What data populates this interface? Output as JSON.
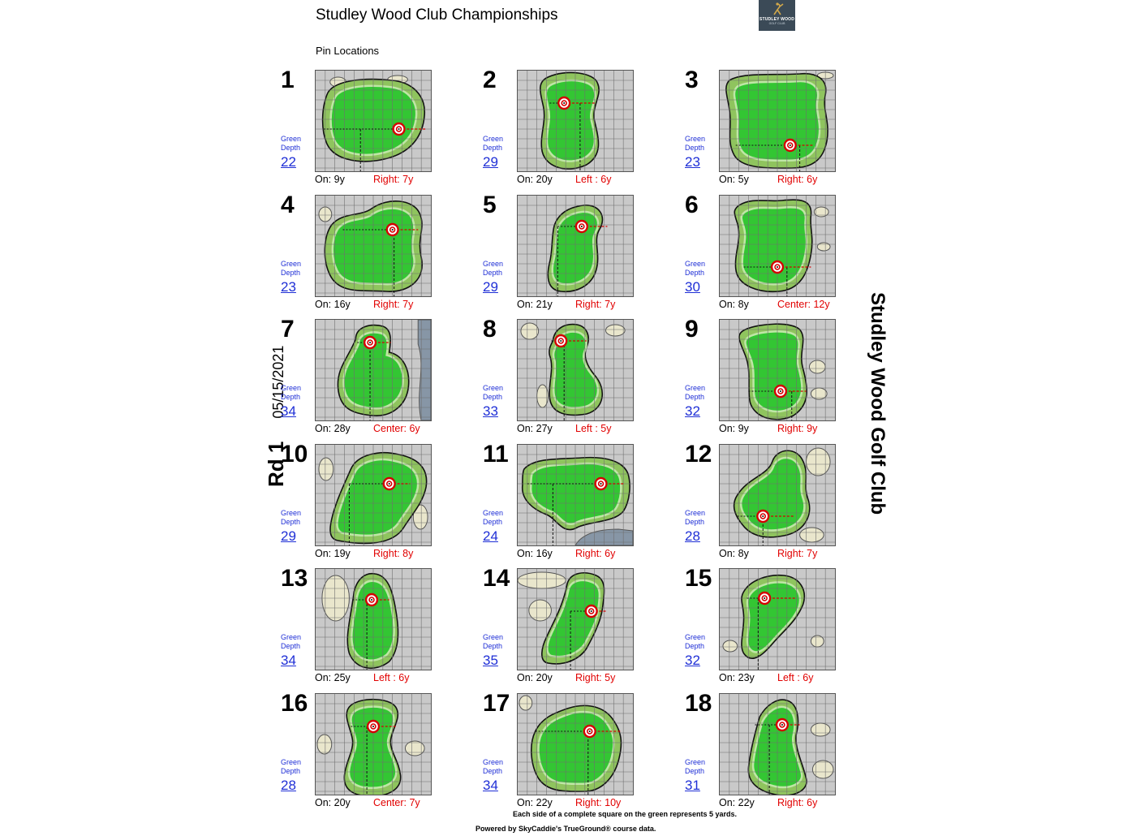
{
  "header": {
    "title": "Studley Wood Club Championships",
    "subtitle": "Pin Locations",
    "logo_line1": "STUDLEY WOOD",
    "logo_line2": "GOLF CLUB"
  },
  "round": {
    "label": "Rd 1",
    "date": "05/15/2021"
  },
  "club_name": "Studley Wood Golf Club",
  "green_depth_label": [
    "Green",
    "Depth"
  ],
  "holes": [
    {
      "number": "1",
      "depth": "22",
      "on": "On: 9y",
      "side": "Right: 7y"
    },
    {
      "number": "2",
      "depth": "29",
      "on": "On: 20y",
      "side": "Left : 6y"
    },
    {
      "number": "3",
      "depth": "23",
      "on": "On: 5y",
      "side": "Right: 6y"
    },
    {
      "number": "4",
      "depth": "23",
      "on": "On: 16y",
      "side": "Right: 7y"
    },
    {
      "number": "5",
      "depth": "29",
      "on": "On: 21y",
      "side": "Right: 7y"
    },
    {
      "number": "6",
      "depth": "30",
      "on": "On: 8y",
      "side": "Center: 12y"
    },
    {
      "number": "7",
      "depth": "34",
      "on": "On: 28y",
      "side": "Center: 6y"
    },
    {
      "number": "8",
      "depth": "33",
      "on": "On: 27y",
      "side": "Left : 5y"
    },
    {
      "number": "9",
      "depth": "32",
      "on": "On: 9y",
      "side": "Right: 9y"
    },
    {
      "number": "10",
      "depth": "29",
      "on": "On: 19y",
      "side": "Right: 8y"
    },
    {
      "number": "11",
      "depth": "24",
      "on": "On: 16y",
      "side": "Right: 6y"
    },
    {
      "number": "12",
      "depth": "28",
      "on": "On: 8y",
      "side": "Right: 7y"
    },
    {
      "number": "13",
      "depth": "34",
      "on": "On: 25y",
      "side": "Left : 6y"
    },
    {
      "number": "14",
      "depth": "35",
      "on": "On: 20y",
      "side": "Right: 5y"
    },
    {
      "number": "15",
      "depth": "32",
      "on": "On: 23y",
      "side": "Left : 6y"
    },
    {
      "number": "16",
      "depth": "28",
      "on": "On: 20y",
      "side": "Center: 7y"
    },
    {
      "number": "17",
      "depth": "34",
      "on": "On: 22y",
      "side": "Right: 10y"
    },
    {
      "number": "18",
      "depth": "31",
      "on": "On: 22y",
      "side": "Right: 6y"
    }
  ],
  "footer": {
    "scale_note": "Each side of a complete square on the green represents 5 yards.",
    "powered_by": "Powered by SkyCaddie's TrueGround® course data."
  },
  "colors": {
    "green": "#33c633",
    "fringe": "#8fc45e",
    "rough": "#c9c9c9",
    "bunker": "#e9e6cc",
    "water": "#8796a6",
    "pin": "#d40000",
    "depth_link": "#1f2fd6",
    "side_text": "#e10000"
  }
}
